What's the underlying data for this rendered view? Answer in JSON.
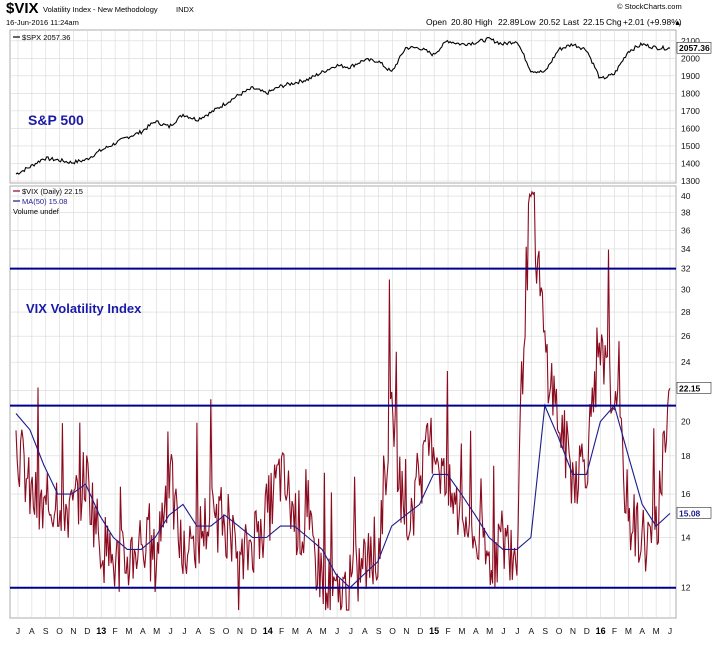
{
  "header": {
    "symbol": "$VIX",
    "title": "Volatility Index - New Methodology",
    "exchange": "INDX",
    "date": "16-Jun-2016 11:24am",
    "quote": {
      "open_label": "Open",
      "open": "20.80",
      "high_label": "High",
      "high": "22.89",
      "low_label": "Low",
      "low": "20.52",
      "last_label": "Last",
      "last": "22.15",
      "chg_label": "Chg",
      "chg": "+2.01 (+9.98%)"
    },
    "up_glyph": "▲",
    "credit": "© StockCharts.com"
  },
  "colors": {
    "spx": "#000000",
    "vix": "#8b0a1e",
    "ma": "#1c1c8c",
    "hline": "#00008b",
    "label_blue": "#1a1aa8",
    "grid": "#d8d8d8"
  },
  "spx_panel": {
    "legend": "$SPX 2057.36",
    "annotation": "S&P 500",
    "last_badge": "2057.36",
    "ticks": [
      "2100",
      "2000",
      "1900",
      "1800",
      "1700",
      "1600",
      "1500",
      "1400",
      "1300"
    ]
  },
  "vix_panel": {
    "legend_main": "$VIX (Daily) 22.15",
    "legend_ma": "MA(50) 15.08",
    "legend_volume": "Volume undef",
    "annotation": "VIX Volatility Index",
    "last_badge": "22.15",
    "ma_badge": "15.08",
    "ticks": [
      "40",
      "38",
      "36",
      "34",
      "32",
      "30",
      "28",
      "26",
      "24",
      "22",
      "20",
      "18",
      "16",
      "14",
      "12"
    ]
  },
  "x_axis": {
    "months": [
      "J",
      "A",
      "S",
      "O",
      "N",
      "D",
      "13",
      "F",
      "M",
      "A",
      "M",
      "J",
      "J",
      "A",
      "S",
      "O",
      "N",
      "D",
      "14",
      "F",
      "M",
      "A",
      "M",
      "J",
      "J",
      "A",
      "S",
      "O",
      "N",
      "D",
      "15",
      "F",
      "M",
      "A",
      "M",
      "J",
      "J",
      "A",
      "S",
      "O",
      "N",
      "D",
      "16",
      "F",
      "M",
      "A",
      "M",
      "J"
    ]
  },
  "chart_data": [
    {
      "type": "line",
      "title": "$SPX",
      "series": [
        {
          "name": "$SPX",
          "x": [
            "2012-07",
            "2012-08",
            "2012-09",
            "2012-10",
            "2012-11",
            "2012-12",
            "2013-01",
            "2013-02",
            "2013-03",
            "2013-04",
            "2013-05",
            "2013-06",
            "2013-07",
            "2013-08",
            "2013-09",
            "2013-10",
            "2013-11",
            "2013-12",
            "2014-01",
            "2014-02",
            "2014-03",
            "2014-04",
            "2014-05",
            "2014-06",
            "2014-07",
            "2014-08",
            "2014-09",
            "2014-10",
            "2014-11",
            "2014-12",
            "2015-01",
            "2015-02",
            "2015-03",
            "2015-04",
            "2015-05",
            "2015-06",
            "2015-07",
            "2015-08",
            "2015-09",
            "2015-10",
            "2015-11",
            "2015-12",
            "2016-01",
            "2016-02",
            "2016-03",
            "2016-04",
            "2016-05",
            "2016-06"
          ],
          "values": [
            1340,
            1380,
            1430,
            1420,
            1405,
            1420,
            1470,
            1510,
            1550,
            1580,
            1640,
            1610,
            1680,
            1650,
            1690,
            1740,
            1790,
            1830,
            1800,
            1840,
            1860,
            1880,
            1920,
            1960,
            1950,
            1990,
            1985,
            1920,
            2060,
            2060,
            2020,
            2100,
            2080,
            2090,
            2110,
            2080,
            2100,
            1930,
            1920,
            2050,
            2080,
            2050,
            1880,
            1910,
            2040,
            2080,
            2060,
            2057.36
          ]
        }
      ],
      "ylim": [
        1300,
        2150
      ]
    },
    {
      "type": "line",
      "title": "$VIX (Daily)",
      "series": [
        {
          "name": "$VIX (Daily)",
          "x": [
            "2012-07",
            "2012-08",
            "2012-09",
            "2012-10",
            "2012-11",
            "2012-12",
            "2013-01",
            "2013-02",
            "2013-03",
            "2013-04",
            "2013-05",
            "2013-06",
            "2013-07",
            "2013-08",
            "2013-09",
            "2013-10",
            "2013-11",
            "2013-12",
            "2014-01",
            "2014-02",
            "2014-03",
            "2014-04",
            "2014-05",
            "2014-06",
            "2014-07",
            "2014-08",
            "2014-09",
            "2014-10",
            "2014-11",
            "2014-12",
            "2015-01",
            "2015-02",
            "2015-03",
            "2015-04",
            "2015-05",
            "2015-06",
            "2015-07",
            "2015-08",
            "2015-09",
            "2015-10",
            "2015-11",
            "2015-12",
            "2016-01",
            "2016-02",
            "2016-03",
            "2016-04",
            "2016-05",
            "2016-06"
          ],
          "values": [
            19,
            16,
            15,
            16,
            15,
            17,
            14,
            13,
            13,
            14,
            13,
            17,
            13,
            14,
            15,
            15,
            12.5,
            14,
            15,
            17,
            15,
            14,
            12.5,
            11.5,
            12,
            13,
            13,
            21,
            14,
            17,
            19,
            16,
            15,
            14,
            13,
            14,
            13,
            40,
            25,
            20,
            17,
            18,
            24,
            22,
            15,
            14,
            14,
            22.15
          ]
        },
        {
          "name": "MA(50)",
          "x": [
            "2012-07",
            "2012-08",
            "2012-09",
            "2012-10",
            "2012-11",
            "2012-12",
            "2013-01",
            "2013-02",
            "2013-03",
            "2013-04",
            "2013-05",
            "2013-06",
            "2013-07",
            "2013-08",
            "2013-09",
            "2013-10",
            "2013-11",
            "2013-12",
            "2014-01",
            "2014-02",
            "2014-03",
            "2014-04",
            "2014-05",
            "2014-06",
            "2014-07",
            "2014-08",
            "2014-09",
            "2014-10",
            "2014-11",
            "2014-12",
            "2015-01",
            "2015-02",
            "2015-03",
            "2015-04",
            "2015-05",
            "2015-06",
            "2015-07",
            "2015-08",
            "2015-09",
            "2015-10",
            "2015-11",
            "2015-12",
            "2016-01",
            "2016-02",
            "2016-03",
            "2016-04",
            "2016-05",
            "2016-06"
          ],
          "values": [
            20.5,
            19.5,
            17.5,
            16,
            16,
            16.5,
            15,
            14,
            13.5,
            13.5,
            14,
            15,
            15.5,
            14.5,
            14.5,
            15,
            14.5,
            14,
            14,
            14.5,
            14.5,
            14,
            13.5,
            12.5,
            12,
            12.5,
            13,
            14.5,
            15,
            15.5,
            17,
            17,
            16,
            15,
            14,
            13.5,
            13.5,
            14,
            21,
            19,
            17,
            17,
            20,
            21,
            18,
            15.5,
            14.5,
            15.08
          ]
        }
      ],
      "hlines": [
        32,
        21,
        12
      ],
      "ylim": [
        11,
        41
      ]
    }
  ]
}
